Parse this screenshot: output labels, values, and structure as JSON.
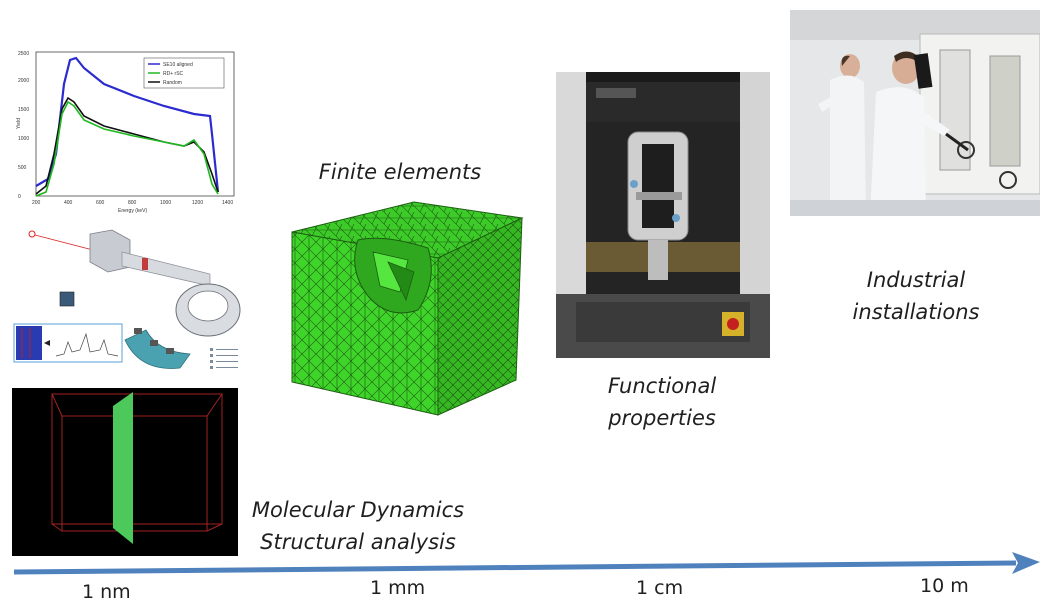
{
  "captions": {
    "finite_elements": "Finite elements",
    "functional_properties": [
      "Functional",
      "properties"
    ],
    "industrial_installations": [
      "Industrial",
      "installations"
    ],
    "molecular_dynamics": "Molecular Dynamics",
    "structural_analysis": "Structural analysis"
  },
  "scale_axis": {
    "ticks": [
      "1 nm",
      "1 mm",
      "1 cm",
      "10 m"
    ],
    "color": "#4f81bd"
  },
  "spectrum_chart": {
    "xlabel": "Energy (keV)",
    "ylabel": "Yield",
    "x_ticks": [
      "200",
      "400",
      "600",
      "800",
      "1000",
      "1200",
      "1400"
    ],
    "y_ticks": [
      "0",
      "500",
      "1000",
      "1500",
      "2000",
      "2500"
    ],
    "legend": [
      "SE10 aligned",
      "RD+ rSC",
      "Random"
    ],
    "series_colors": [
      "#2b2bd0",
      "#1fb81f",
      "#111111"
    ]
  },
  "colors": {
    "mesh_green": "#3fd42a",
    "slab_green": "#4cc95a",
    "md_box_red": "#a32222"
  }
}
